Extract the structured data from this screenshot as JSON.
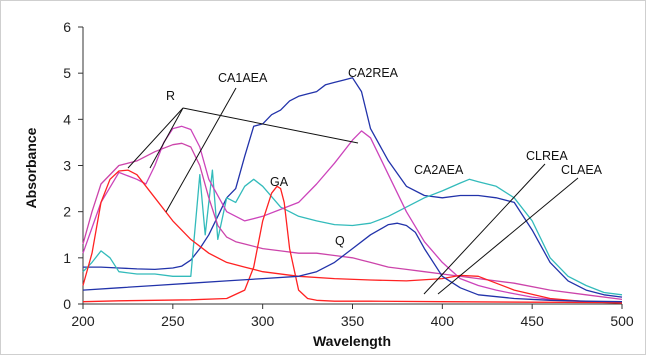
{
  "chart_data": {
    "type": "line",
    "title": "",
    "xlabel": "Wavelength",
    "ylabel": "Absorbance",
    "xlim": [
      200,
      500
    ],
    "ylim": [
      0,
      6
    ],
    "xticks": [
      200,
      250,
      300,
      350,
      400,
      450,
      500
    ],
    "yticks": [
      0,
      1,
      2,
      3,
      4,
      5,
      6
    ],
    "grid": false,
    "legend": "none",
    "annotations": [
      "CA1AEA",
      "CA2REA",
      "R",
      "GA",
      "CA2AEA",
      "CLREA",
      "CLAEA",
      "Q"
    ],
    "series": [
      {
        "name": "CA2REA",
        "color": "#2233aa",
        "x": [
          200,
          210,
          220,
          230,
          240,
          250,
          255,
          260,
          265,
          270,
          275,
          280,
          285,
          290,
          295,
          300,
          305,
          310,
          315,
          320,
          325,
          330,
          335,
          340,
          345,
          350,
          355,
          360,
          370,
          380,
          390,
          400,
          410,
          420,
          430,
          440,
          450,
          460,
          470,
          480,
          490,
          500
        ],
        "y": [
          0.8,
          0.8,
          0.78,
          0.76,
          0.75,
          0.78,
          0.82,
          0.95,
          1.2,
          1.5,
          1.9,
          2.3,
          2.5,
          3.2,
          3.85,
          3.9,
          4.1,
          4.2,
          4.4,
          4.5,
          4.55,
          4.6,
          4.75,
          4.8,
          4.85,
          4.9,
          4.6,
          3.8,
          3.1,
          2.55,
          2.35,
          2.3,
          2.35,
          2.35,
          2.3,
          2.2,
          1.6,
          0.9,
          0.5,
          0.3,
          0.2,
          0.15
        ]
      },
      {
        "name": "CA2AEA",
        "color": "#33bbbb",
        "x": [
          200,
          205,
          210,
          215,
          220,
          230,
          240,
          250,
          260,
          265,
          268,
          272,
          275,
          280,
          285,
          290,
          295,
          300,
          310,
          320,
          330,
          340,
          350,
          360,
          370,
          380,
          390,
          400,
          410,
          415,
          420,
          430,
          440,
          450,
          460,
          470,
          480,
          490,
          500
        ],
        "y": [
          0.7,
          0.9,
          1.15,
          1.0,
          0.7,
          0.65,
          0.65,
          0.6,
          0.6,
          2.8,
          1.5,
          2.9,
          1.4,
          2.3,
          2.2,
          2.55,
          2.7,
          2.55,
          2.1,
          1.9,
          1.8,
          1.72,
          1.7,
          1.75,
          1.9,
          2.1,
          2.3,
          2.45,
          2.62,
          2.7,
          2.65,
          2.55,
          2.3,
          1.8,
          1.0,
          0.6,
          0.4,
          0.25,
          0.2
        ]
      },
      {
        "name": "CA1AEA",
        "color": "#cc44aa",
        "x": [
          200,
          205,
          210,
          220,
          230,
          240,
          250,
          255,
          260,
          265,
          270,
          275,
          280,
          285,
          290,
          300,
          310,
          320,
          330,
          340,
          350,
          355,
          360,
          365,
          370,
          380,
          390,
          400,
          420,
          440,
          460,
          480,
          500
        ],
        "y": [
          1.3,
          2.0,
          2.6,
          3.0,
          3.1,
          3.3,
          3.45,
          3.48,
          3.4,
          3.0,
          2.3,
          1.7,
          1.45,
          1.35,
          1.3,
          1.2,
          1.15,
          1.1,
          1.1,
          1.05,
          1.0,
          0.95,
          0.9,
          0.85,
          0.8,
          0.75,
          0.7,
          0.65,
          0.55,
          0.45,
          0.3,
          0.2,
          0.1
        ]
      },
      {
        "name": "CLREA",
        "color": "#cc44bb",
        "x": [
          200,
          210,
          220,
          230,
          235,
          240,
          245,
          250,
          255,
          260,
          265,
          270,
          280,
          290,
          300,
          310,
          320,
          330,
          340,
          350,
          355,
          360,
          365,
          370,
          380,
          390,
          400,
          410,
          420,
          430,
          440,
          450,
          460,
          480,
          500
        ],
        "y": [
          1.1,
          2.2,
          2.85,
          2.7,
          2.6,
          3.0,
          3.5,
          3.8,
          3.85,
          3.78,
          3.4,
          2.7,
          2.0,
          1.8,
          1.9,
          2.05,
          2.2,
          2.6,
          3.05,
          3.55,
          3.75,
          3.6,
          3.2,
          2.8,
          2.0,
          1.35,
          0.9,
          0.55,
          0.4,
          0.3,
          0.22,
          0.15,
          0.1,
          0.05,
          0.03
        ]
      },
      {
        "name": "CLAEA",
        "color": "#ff2222",
        "x": [
          200,
          205,
          210,
          215,
          220,
          225,
          230,
          240,
          250,
          260,
          270,
          280,
          290,
          300,
          320,
          340,
          360,
          380,
          400,
          410,
          420,
          430,
          440,
          460,
          480,
          500
        ],
        "y": [
          0.4,
          1.1,
          2.2,
          2.7,
          2.88,
          2.9,
          2.8,
          2.3,
          1.8,
          1.4,
          1.1,
          0.9,
          0.8,
          0.7,
          0.6,
          0.55,
          0.52,
          0.5,
          0.55,
          0.62,
          0.6,
          0.45,
          0.3,
          0.12,
          0.05,
          0.02
        ]
      },
      {
        "name": "GA",
        "color": "#ff2222",
        "x": [
          200,
          220,
          240,
          260,
          280,
          290,
          295,
          300,
          305,
          308,
          310,
          312,
          315,
          320,
          325,
          330,
          340,
          360,
          400,
          450,
          500
        ],
        "y": [
          0.05,
          0.07,
          0.08,
          0.09,
          0.12,
          0.3,
          0.8,
          1.8,
          2.4,
          2.55,
          2.5,
          2.2,
          1.2,
          0.3,
          0.12,
          0.08,
          0.06,
          0.06,
          0.05,
          0.04,
          0.03
        ]
      },
      {
        "name": "Q",
        "color": "#2233aa",
        "x": [
          200,
          220,
          240,
          260,
          280,
          300,
          320,
          330,
          340,
          350,
          360,
          370,
          375,
          380,
          385,
          390,
          400,
          410,
          420,
          440,
          460,
          480,
          500
        ],
        "y": [
          0.3,
          0.35,
          0.4,
          0.45,
          0.5,
          0.55,
          0.6,
          0.7,
          0.9,
          1.2,
          1.5,
          1.72,
          1.75,
          1.7,
          1.55,
          1.2,
          0.6,
          0.35,
          0.2,
          0.12,
          0.08,
          0.06,
          0.05
        ]
      }
    ]
  }
}
